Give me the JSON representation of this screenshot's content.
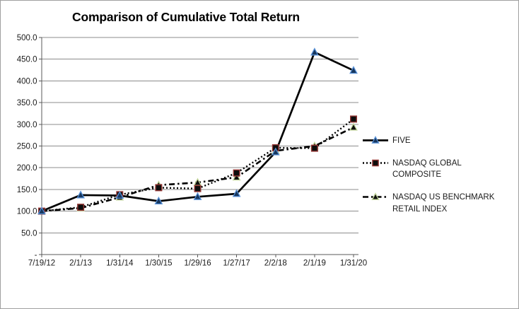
{
  "chart_data": {
    "type": "line",
    "title": "Comparison of Cumulative Total Return",
    "categories": [
      "7/19/12",
      "2/1/13",
      "1/31/14",
      "1/30/15",
      "1/29/16",
      "1/27/17",
      "2/2/18",
      "2/1/19",
      "1/31/20"
    ],
    "series": [
      {
        "name": "FIVE",
        "values": [
          100,
          137,
          136,
          123,
          133,
          140,
          236,
          466,
          424
        ],
        "line_style": "solid",
        "line_color": "#000000",
        "line_width": 2.7,
        "marker": "triangle",
        "marker_fill": "#17375E",
        "marker_stroke": "#558ED5"
      },
      {
        "name": "NASDAQ GLOBAL COMPOSITE",
        "values": [
          100,
          109,
          138,
          154,
          152,
          188,
          246,
          245,
          312
        ],
        "line_style": "dotted",
        "line_color": "#000000",
        "line_width": 2.4,
        "marker": "square",
        "marker_fill": "#0D0D0D",
        "marker_stroke": "#943634"
      },
      {
        "name": "NASDAQ US BENCHMARK RETAIL INDEX",
        "values": [
          100,
          107,
          132,
          160,
          166,
          178,
          239,
          250,
          293
        ],
        "line_style": "dash-dot",
        "line_color": "#000000",
        "line_width": 2.6,
        "marker": "triangle",
        "marker_fill": "#0D0D0D",
        "marker_stroke": "#C3D69B"
      }
    ],
    "y_axis": {
      "min": 0,
      "max": 500,
      "step": 50,
      "tick_labels": [
        "500.0",
        "450.0",
        "400.0",
        "350.0",
        "300.0",
        "250.0",
        "200.0",
        "150.0",
        "100.0",
        "50.0",
        "-"
      ]
    },
    "x_axis": {
      "label_row_y": "below axis"
    },
    "grid": true,
    "legend_position": "right",
    "gridline_color": "#8C8C8C",
    "axis_color": "#595959"
  }
}
